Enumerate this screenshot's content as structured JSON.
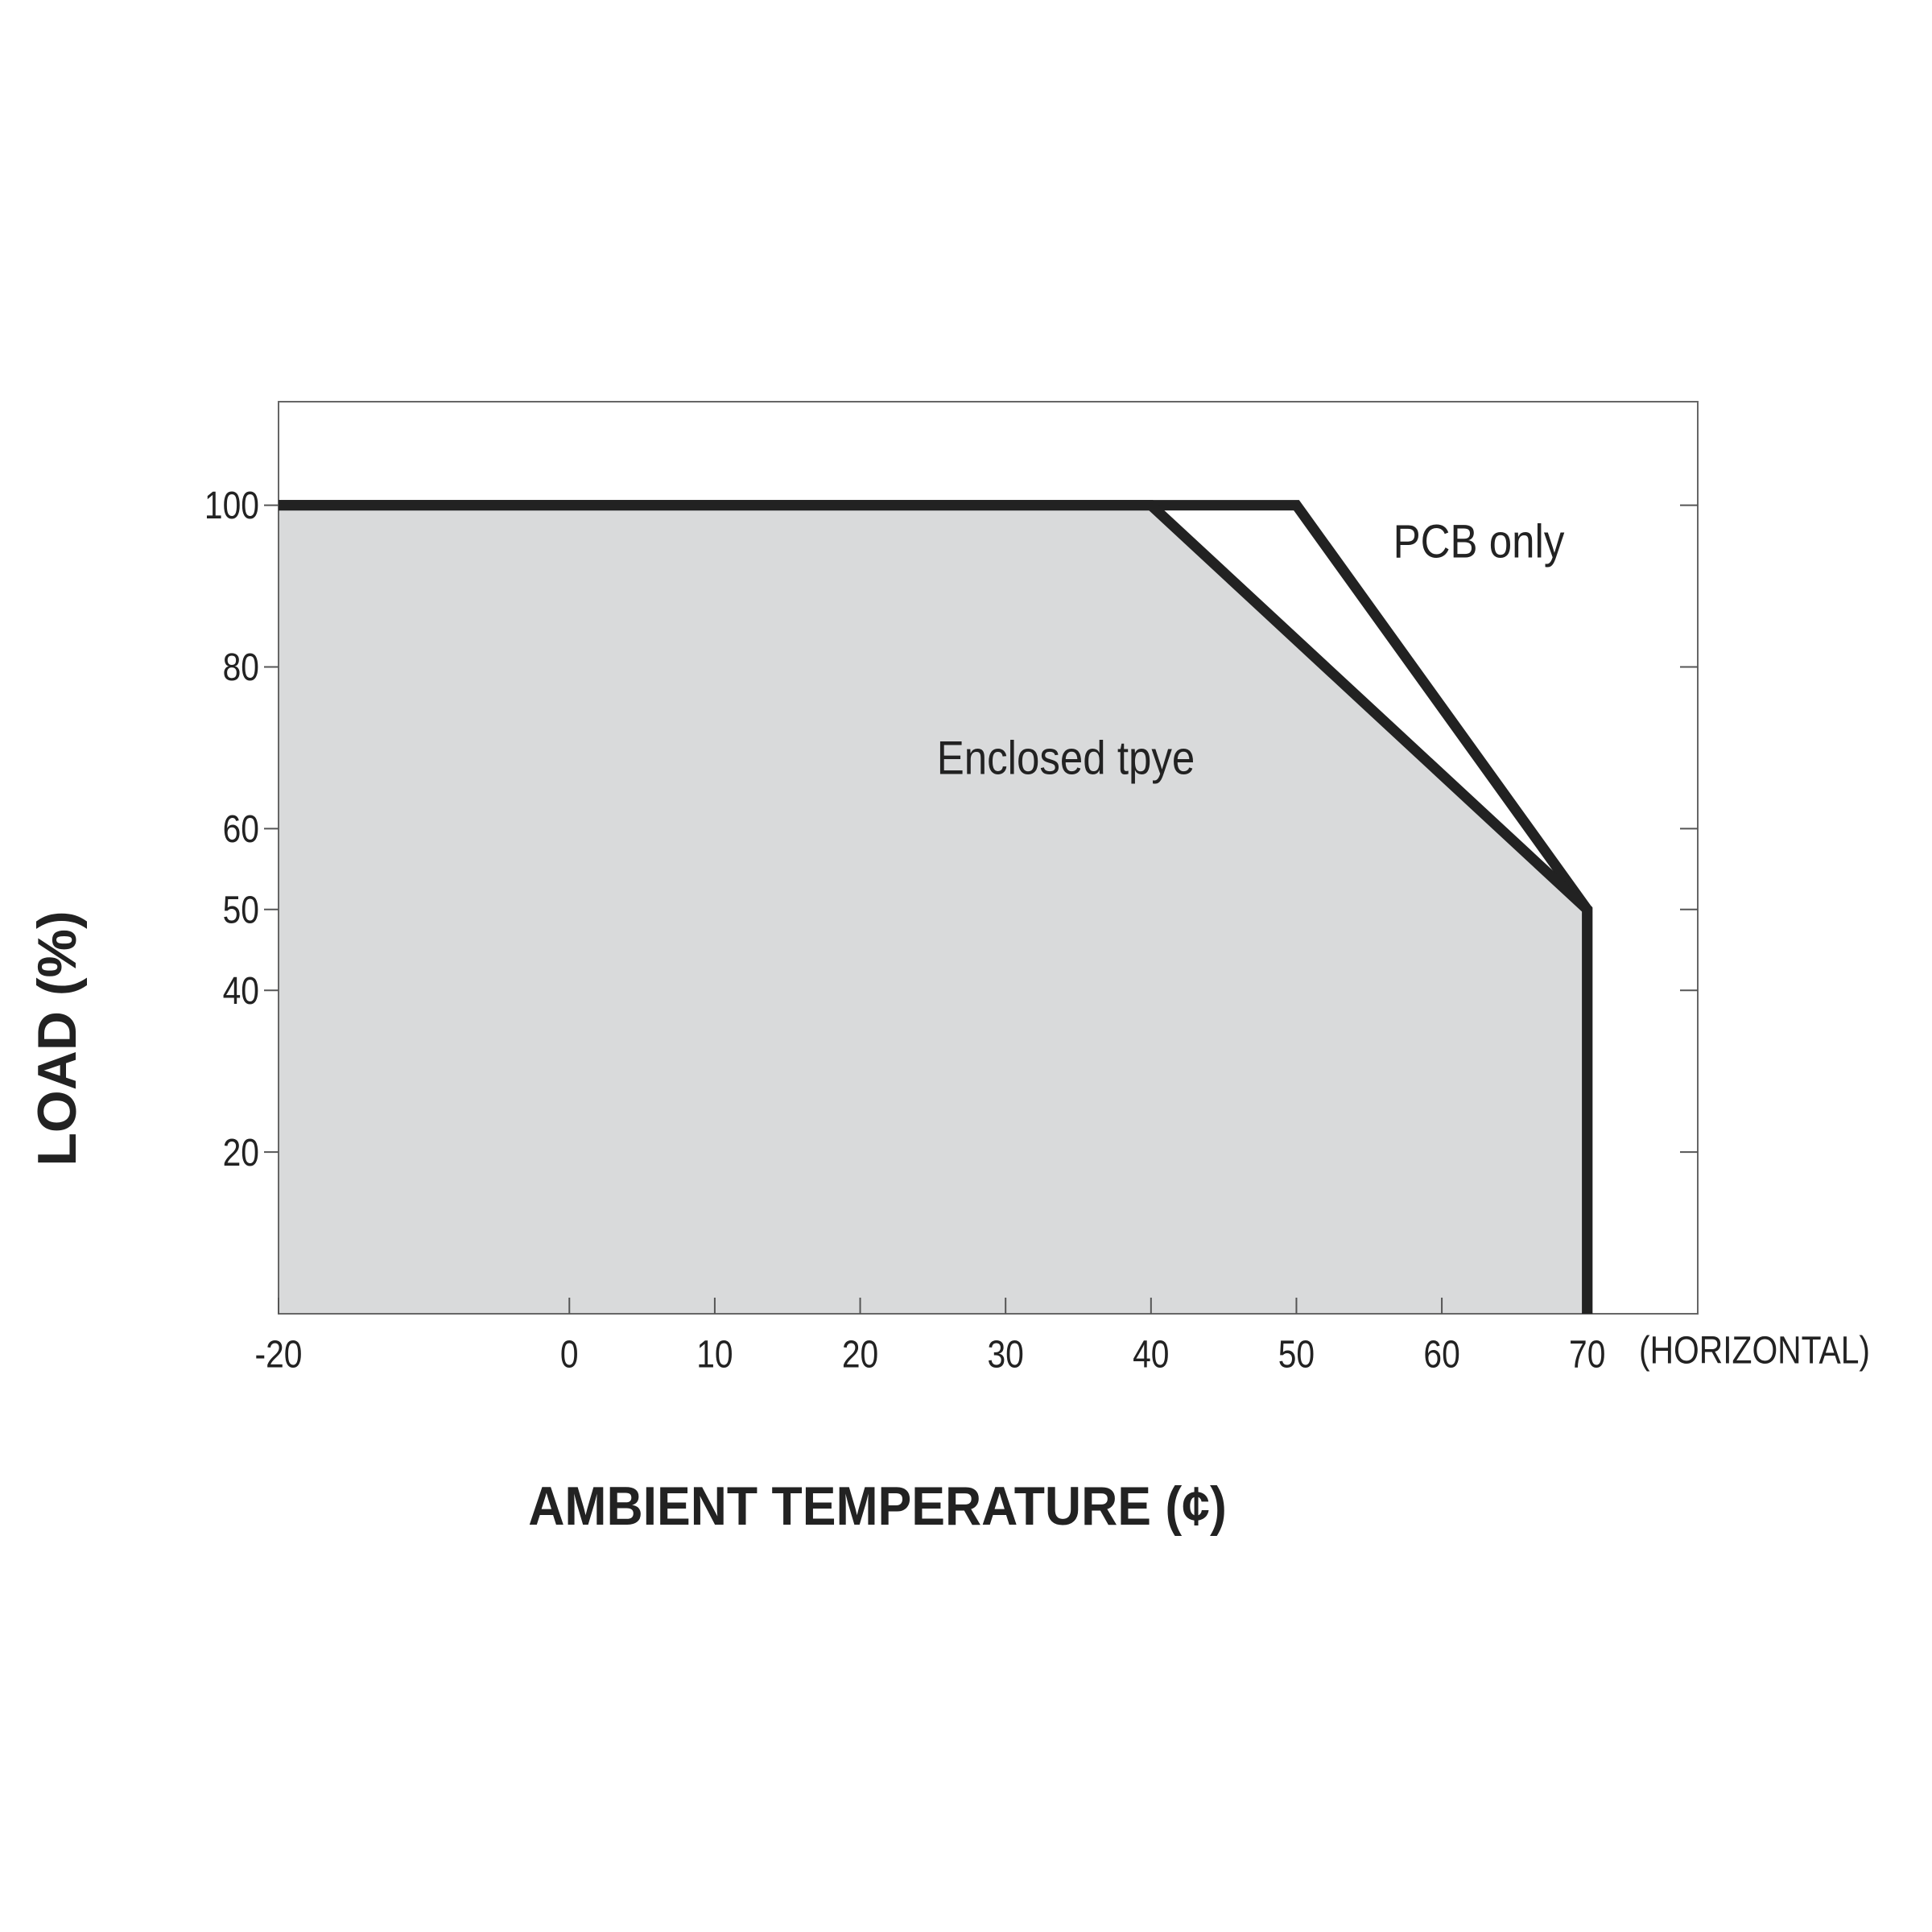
{
  "chart_data": {
    "type": "line",
    "x_label": "AMBIENT TEMPERATURE (¢)",
    "y_label": "LOAD (%)",
    "x_note": "(HORIZONTAL)",
    "series": [
      {
        "name": "PCB only",
        "color": "#222222",
        "x": [
          -20,
          50,
          70,
          70
        ],
        "values": [
          100,
          100,
          50,
          0
        ]
      },
      {
        "name": "Enclosed tpye",
        "color": "#222222",
        "fill": "#d9dadb",
        "x": [
          -20,
          40,
          70,
          70
        ],
        "values": [
          100,
          100,
          50,
          0
        ]
      }
    ],
    "xlim": [
      -20,
      77.6
    ],
    "ylim": [
      0,
      112.8
    ],
    "xticks": [
      -20,
      0,
      10,
      20,
      30,
      40,
      50,
      60,
      70
    ],
    "yticks": [
      20,
      40,
      50,
      60,
      80,
      100
    ]
  }
}
